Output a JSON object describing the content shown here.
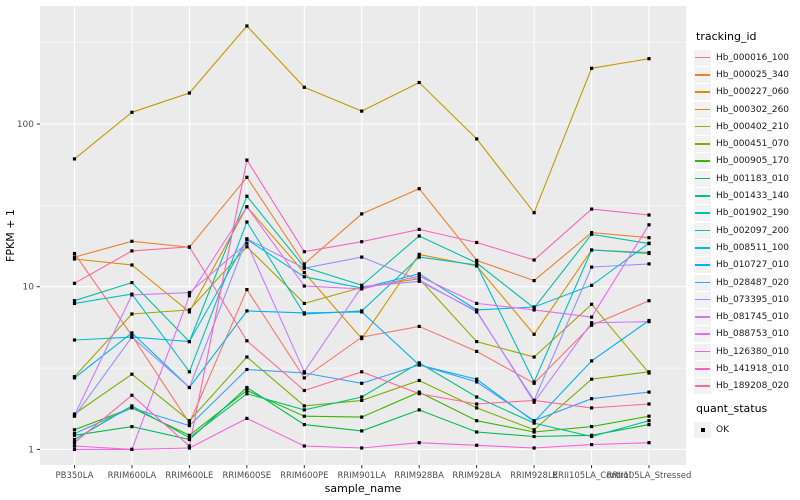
{
  "axes": {
    "x_title": "sample_name",
    "y_title": "FPKM + 1",
    "y_tick_labels": [
      "1",
      "10",
      "100"
    ],
    "y_tick_values": [
      1,
      10,
      100
    ],
    "y_minor_values": [
      3.1623,
      31.623,
      316.23
    ]
  },
  "legend": {
    "title": "tracking_id"
  },
  "legend2": {
    "title": "quant_status",
    "items": [
      {
        "label": "OK"
      }
    ]
  },
  "chart_data": {
    "type": "line",
    "title": "",
    "xlabel": "sample_name",
    "ylabel": "FPKM + 1",
    "yscale": "log10",
    "ylim": [
      1,
      530
    ],
    "yticks": [
      1,
      10,
      100
    ],
    "grid": true,
    "legend_position": "right",
    "panel_bg": "#EBEBEB",
    "grid_color": "#FFFFFF",
    "point_shape": "filled-square",
    "point_color": "#000000",
    "tick_text_color": "#4D4D4D",
    "categories": [
      "PB350LA",
      "RRIM600LA",
      "RRIM600LE",
      "RRIM600SE",
      "RRIM600PE",
      "RRIM901LA",
      "RRIM928BA",
      "RRIM928LA",
      "RRIM928LE",
      "RRII105LA_Control",
      "RRII105LA_Stressed"
    ],
    "series": [
      {
        "name": "Hb_000016_100",
        "color": "#F8766D",
        "values": [
          16,
          5.0,
          1.45,
          9.6,
          2.75,
          4.9,
          5.7,
          4.0,
          2.55,
          5.8,
          8.2
        ]
      },
      {
        "name": "Hb_000025_340",
        "color": "#EA8331",
        "values": [
          15.2,
          19,
          17.5,
          47,
          13.8,
          28,
          40,
          14.5,
          10.9,
          21.5,
          20
        ]
      },
      {
        "name": "Hb_000227_060",
        "color": "#D89000",
        "values": [
          14.8,
          13.6,
          7.0,
          31,
          12.2,
          4.8,
          15.8,
          13.4,
          5.1,
          16.8,
          16.2
        ]
      },
      {
        "name": "Hb_000302_260",
        "color": "#C09B00",
        "values": [
          61,
          118,
          155,
          400,
          168,
          120,
          180,
          81,
          28.5,
          220,
          252
        ]
      },
      {
        "name": "Hb_000402_210",
        "color": "#A3A500",
        "values": [
          2.8,
          6.8,
          7.2,
          17.6,
          7.9,
          9.9,
          11.2,
          4.6,
          3.7,
          7.8,
          2.95
        ]
      },
      {
        "name": "Hb_000451_070",
        "color": "#7CAE00",
        "values": [
          1.65,
          2.9,
          1.5,
          3.7,
          1.85,
          2.0,
          2.65,
          1.8,
          1.32,
          2.7,
          3.0
        ]
      },
      {
        "name": "Hb_000905_170",
        "color": "#39B600",
        "values": [
          1.32,
          1.8,
          1.22,
          2.3,
          1.6,
          1.58,
          2.25,
          1.5,
          1.28,
          1.38,
          1.6
        ]
      },
      {
        "name": "Hb_001183_010",
        "color": "#00BB4E",
        "values": [
          1.22,
          1.38,
          1.15,
          2.4,
          1.42,
          1.3,
          1.75,
          1.28,
          1.2,
          1.22,
          1.42
        ]
      },
      {
        "name": "Hb_001433_140",
        "color": "#00C087",
        "values": [
          1.15,
          1.85,
          1.18,
          2.2,
          1.75,
          2.1,
          3.4,
          2.1,
          1.45,
          1.2,
          1.5
        ]
      },
      {
        "name": "Hb_001902_190",
        "color": "#00C1A3",
        "values": [
          8.2,
          10.6,
          4.6,
          36,
          13.2,
          10.2,
          20.5,
          14.0,
          7.4,
          21.0,
          18.4
        ]
      },
      {
        "name": "Hb_002097_200",
        "color": "#00BFC4",
        "values": [
          7.9,
          9.0,
          3.0,
          25,
          6.8,
          7.1,
          15.2,
          13.6,
          2.6,
          16.8,
          16.0
        ]
      },
      {
        "name": "Hb_008511_100",
        "color": "#00BAE0",
        "values": [
          4.7,
          4.9,
          4.6,
          19.5,
          11.5,
          9.8,
          12.0,
          7.2,
          7.5,
          10.2,
          18.5
        ]
      },
      {
        "name": "Hb_010727_010",
        "color": "#00B0F6",
        "values": [
          2.75,
          5.2,
          2.4,
          7.1,
          6.9,
          7.0,
          3.3,
          2.7,
          1.48,
          3.5,
          6.2
        ]
      },
      {
        "name": "Hb_028487_020",
        "color": "#35A2FF",
        "values": [
          1.25,
          1.8,
          1.4,
          3.1,
          2.95,
          2.55,
          3.3,
          2.6,
          1.5,
          2.05,
          2.25
        ]
      },
      {
        "name": "Hb_073395_010",
        "color": "#9590FF",
        "values": [
          1.6,
          4.9,
          2.4,
          19.7,
          13.0,
          15.2,
          11.0,
          7.0,
          2.0,
          13.2,
          13.8
        ]
      },
      {
        "name": "Hb_081745_010",
        "color": "#C77CFF",
        "values": [
          1.62,
          8.9,
          9.2,
          18.5,
          3.0,
          10.0,
          10.8,
          7.1,
          1.95,
          6.0,
          6.1
        ]
      },
      {
        "name": "Hb_088753_010",
        "color": "#E76BF3",
        "values": [
          1.0,
          1.0,
          8.8,
          31,
          10.1,
          9.7,
          11.6,
          7.9,
          7.2,
          6.5,
          24
        ]
      },
      {
        "name": "Hb_126380_010",
        "color": "#FA62DB",
        "values": [
          1.05,
          1.0,
          1.02,
          1.55,
          1.05,
          1.02,
          1.1,
          1.06,
          1.02,
          1.07,
          1.1
        ]
      },
      {
        "name": "Hb_141918_010",
        "color": "#FF62BC",
        "values": [
          1.1,
          2.15,
          1.05,
          60,
          16.4,
          18.9,
          22.5,
          18.7,
          14.6,
          30,
          27.6
        ]
      },
      {
        "name": "Hb_189208_020",
        "color": "#FF6A98",
        "values": [
          10.5,
          16.6,
          17.6,
          4.65,
          2.3,
          3.0,
          2.2,
          1.9,
          2.0,
          1.8,
          1.9
        ]
      }
    ]
  }
}
